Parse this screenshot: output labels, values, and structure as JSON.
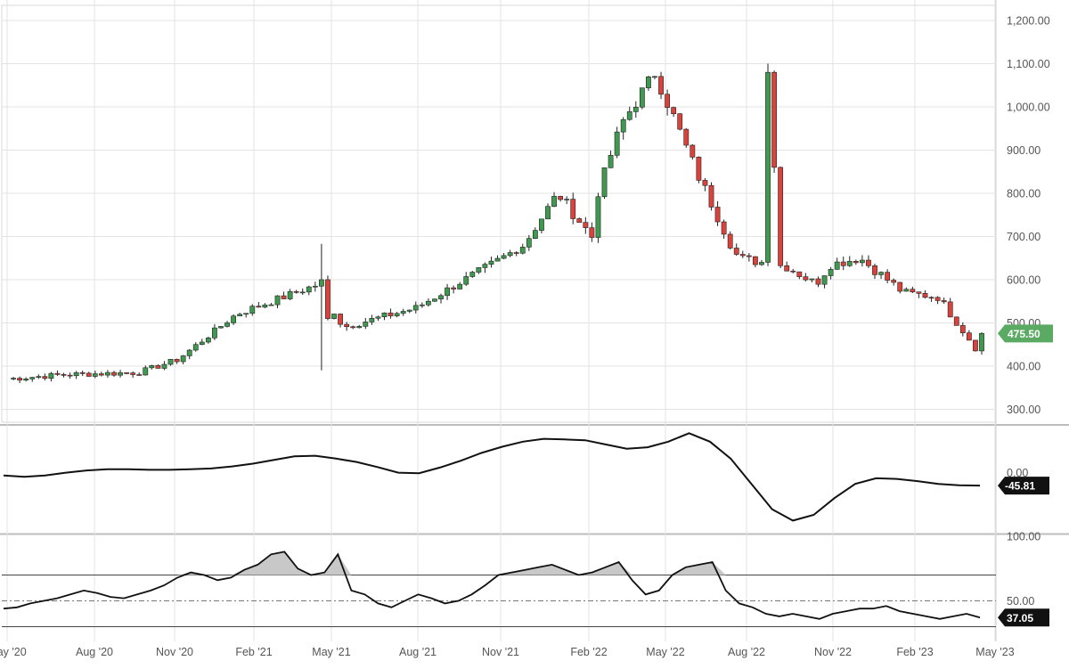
{
  "chart_data": [
    {
      "type": "candlestick",
      "panel": "price",
      "y_ticks": [
        "1,200.00",
        "1,100.00",
        "1,000.00",
        "900.00",
        "800.00",
        "700.00",
        "600.00",
        "500.00",
        "400.00",
        "300.00"
      ],
      "y_tick_values": [
        1200,
        1100,
        1000,
        900,
        800,
        700,
        600,
        500,
        400,
        300
      ],
      "ylim": [
        270,
        1235
      ],
      "last_value_label": "475.50",
      "last_value": 475.5,
      "colors": {
        "up": "#3f9a4f",
        "down": "#d9433b",
        "tag": "#5aaa63"
      },
      "key_points": [
        {
          "date": "2020-05",
          "close": 370
        },
        {
          "date": "2020-08",
          "close": 380
        },
        {
          "date": "2020-11",
          "close": 385
        },
        {
          "date": "2021-01",
          "close": 415
        },
        {
          "date": "2021-03",
          "close": 520
        },
        {
          "date": "2021-04-end",
          "high": 683,
          "low": 390,
          "close": 590
        },
        {
          "date": "2021-06",
          "close": 490
        },
        {
          "date": "2021-08",
          "close": 535
        },
        {
          "date": "2021-10",
          "close": 680
        },
        {
          "date": "2021-12",
          "close": 800
        },
        {
          "date": "2022-01",
          "close": 685
        },
        {
          "date": "2022-02",
          "close": 760
        },
        {
          "date": "2022-03",
          "close": 960
        },
        {
          "date": "2022-04",
          "high": 1100,
          "close": 1080
        },
        {
          "date": "2022-04-end",
          "close": 860
        },
        {
          "date": "2022-06",
          "close": 650
        },
        {
          "date": "2022-08",
          "close": 630
        },
        {
          "date": "2022-09",
          "close": 590
        },
        {
          "date": "2022-10",
          "close": 635
        },
        {
          "date": "2022-11",
          "close": 650
        },
        {
          "date": "2022-12",
          "close": 570
        },
        {
          "date": "2023-02",
          "close": 560
        },
        {
          "date": "2023-03",
          "close": 440
        },
        {
          "date": "2023-04",
          "close": 475.5
        }
      ]
    },
    {
      "type": "line",
      "panel": "oscillator",
      "y_ticks": [
        "0.00"
      ],
      "y_tick_values": [
        0
      ],
      "last_value_label": "-45.81",
      "last_value": -45.81,
      "color": "#111111",
      "values": [
        -10,
        -15,
        -10,
        0,
        8,
        12,
        12,
        10,
        10,
        12,
        15,
        22,
        32,
        45,
        58,
        60,
        50,
        38,
        20,
        0,
        -2,
        18,
        42,
        70,
        92,
        110,
        120,
        118,
        115,
        100,
        85,
        90,
        110,
        140,
        110,
        50,
        -40,
        -130,
        -170,
        -150,
        -90,
        -40,
        -20,
        -22,
        -30,
        -40,
        -45,
        -45.81
      ]
    },
    {
      "type": "area-line",
      "panel": "rsi",
      "y_ticks": [
        "100.00",
        "50.00"
      ],
      "y_tick_values": [
        100,
        50
      ],
      "reference_lines": [
        70,
        50,
        30
      ],
      "last_value_label": "37.05",
      "last_value": 37.05,
      "colors": {
        "line": "#111111",
        "fill": "#c8c8c8",
        "tag": "#111111"
      },
      "values": [
        44,
        45,
        48,
        50,
        52,
        55,
        58,
        56,
        53,
        52,
        55,
        58,
        62,
        68,
        72,
        70,
        66,
        68,
        74,
        78,
        86,
        88,
        75,
        70,
        72,
        86,
        58,
        55,
        48,
        45,
        50,
        55,
        52,
        48,
        50,
        55,
        62,
        70,
        72,
        74,
        76,
        78,
        74,
        70,
        72,
        76,
        80,
        66,
        55,
        58,
        70,
        76,
        78,
        80,
        58,
        48,
        45,
        40,
        38,
        40,
        38,
        36,
        40,
        42,
        44,
        44,
        46,
        42,
        40,
        38,
        36,
        38,
        40,
        37.05
      ]
    }
  ],
  "x_axis": {
    "tick_labels": [
      "May '20",
      "Aug '20",
      "Nov '20",
      "Feb '21",
      "May '21",
      "Aug '21",
      "Nov '21",
      "Feb '22",
      "May '22",
      "Aug '22",
      "Nov '22",
      "Feb '23",
      "May '23"
    ]
  }
}
